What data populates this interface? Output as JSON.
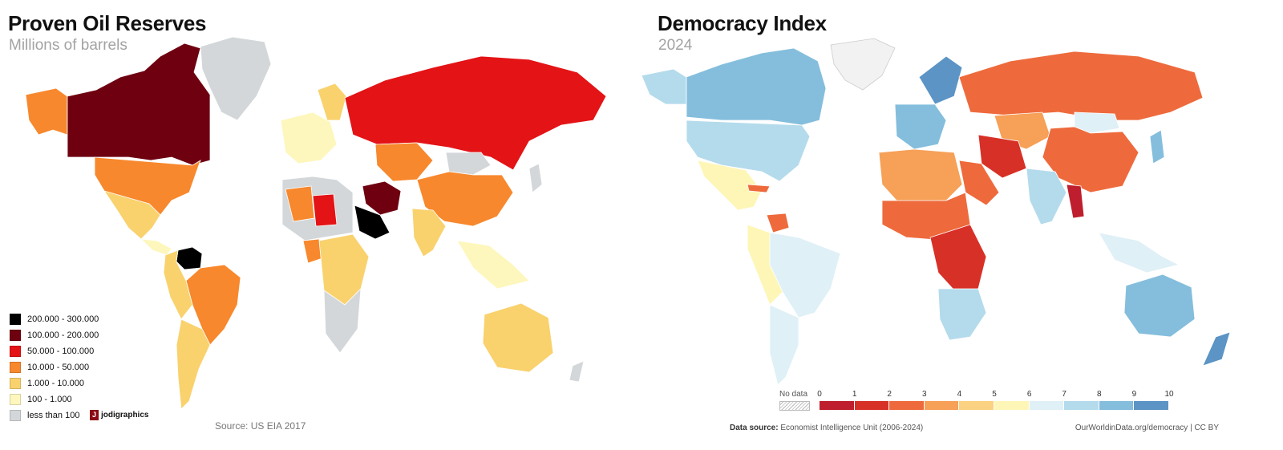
{
  "left_map": {
    "title": "Proven Oil Reserves",
    "subtitle": "Millions of barrels",
    "legend": [
      {
        "label": "200.000 - 300.000",
        "color": "#000000"
      },
      {
        "label": "100.000 - 200.000",
        "color": "#6e0010"
      },
      {
        "label": "50.000 - 100.000",
        "color": "#e31316"
      },
      {
        "label": "10.000 - 50.000",
        "color": "#f7882d"
      },
      {
        "label": "1.000 - 10.000",
        "color": "#f9d26e"
      },
      {
        "label": "100 - 1.000",
        "color": "#fdf7bd"
      },
      {
        "label": "less than 100",
        "color": "#d3d7d9"
      }
    ],
    "logo_text": "jodigraphics",
    "source": "Source: US EIA 2017"
  },
  "right_map": {
    "title": "Democracy Index",
    "subtitle": "2024",
    "no_data_label": "No data",
    "scale_ticks": [
      "0",
      "1",
      "2",
      "3",
      "4",
      "5",
      "6",
      "7",
      "8",
      "9",
      "10"
    ],
    "scale_colors": [
      "#be1e2d",
      "#d73027",
      "#ee6a3c",
      "#f6a058",
      "#fbd281",
      "#fef6b7",
      "#dff0f6",
      "#b4dbec",
      "#84bedc",
      "#5b94c5"
    ],
    "source_label": "Data source:",
    "source_text": "Economist Intelligence Unit (2006-2024)",
    "credit": "OurWorldinData.org/democracy | CC BY"
  }
}
